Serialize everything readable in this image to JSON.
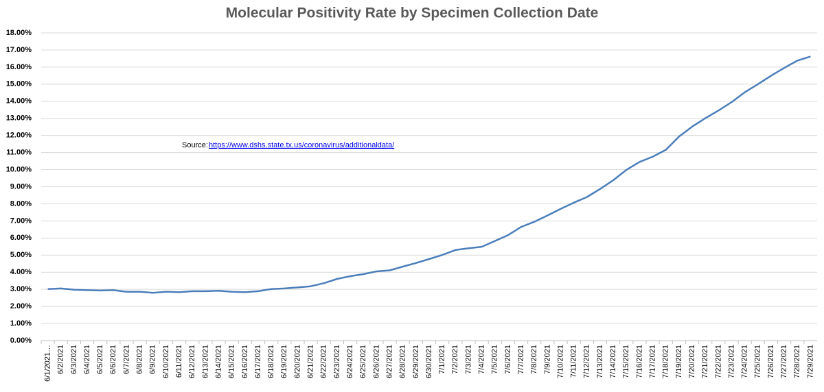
{
  "chart_data": {
    "type": "line",
    "title": "Molecular Positivity Rate by Specimen Collection Date",
    "annotation": "Source:",
    "annotation_link": "https://www.dshs.state.tx.us/coronavirus/additionaldata/",
    "categories": [
      "6/1/2021…",
      "6/2/2021",
      "6/3/2021",
      "6/4/2021",
      "6/5/2021",
      "6/6/2021",
      "6/7/2021",
      "6/8/2021",
      "6/9/2021",
      "6/10/2021",
      "6/11/2021",
      "6/12/2021",
      "6/13/2021",
      "6/14/2021",
      "6/15/2021",
      "6/16/2021",
      "6/17/2021",
      "6/18/2021",
      "6/19/2021",
      "6/20/2021",
      "6/21/2021",
      "6/22/2021",
      "6/23/2021",
      "6/24/2021",
      "6/25/2021",
      "6/26/2021",
      "6/27/2021",
      "6/28/2021",
      "6/29/2021",
      "6/30/2021",
      "7/1/2021",
      "7/2/2021",
      "7/3/2021",
      "7/4/2021",
      "7/5/2021",
      "7/6/2021",
      "7/7/2021",
      "7/8/2021",
      "7/9/2021",
      "7/10/2021",
      "7/11/2021",
      "7/12/2021",
      "7/13/2021",
      "7/14/2021",
      "7/15/2021",
      "7/16/2021",
      "7/17/2021",
      "7/18/2021",
      "7/19/2021",
      "7/20/2021",
      "7/21/2021",
      "7/22/2021",
      "7/23/2021",
      "7/24/2021",
      "7/25/2021",
      "7/26/2021",
      "7/27/2021",
      "7/28/2021",
      "7/29/2021"
    ],
    "values": [
      3.02,
      3.05,
      2.98,
      2.95,
      2.93,
      2.95,
      2.86,
      2.86,
      2.8,
      2.86,
      2.83,
      2.89,
      2.89,
      2.92,
      2.86,
      2.83,
      2.89,
      3.02,
      3.05,
      3.11,
      3.18,
      3.36,
      3.61,
      3.77,
      3.89,
      4.05,
      4.11,
      4.33,
      4.54,
      4.77,
      5.01,
      5.3,
      5.4,
      5.49,
      5.83,
      6.17,
      6.65,
      6.95,
      7.32,
      7.71,
      8.07,
      8.4,
      8.87,
      9.38,
      9.99,
      10.45,
      10.76,
      11.16,
      11.94,
      12.52,
      13.01,
      13.46,
      13.95,
      14.53,
      15.0,
      15.5,
      15.95,
      16.38,
      16.62
    ],
    "color": "#4a7ebb",
    "ylim": [
      0,
      18
    ],
    "yticks": [
      {
        "value": 0,
        "label": "0.00%"
      },
      {
        "value": 1,
        "label": "1.00%"
      },
      {
        "value": 2,
        "label": "2.00%"
      },
      {
        "value": 3,
        "label": "3.00%"
      },
      {
        "value": 4,
        "label": "4.00%"
      },
      {
        "value": 5,
        "label": "5.00%"
      },
      {
        "value": 6,
        "label": "6.00%"
      },
      {
        "value": 7,
        "label": "7.00%"
      },
      {
        "value": 8,
        "label": "8.00%"
      },
      {
        "value": 9,
        "label": "9.00%"
      },
      {
        "value": 10,
        "label": "10.00%"
      },
      {
        "value": 11,
        "label": "11.00%"
      },
      {
        "value": 12,
        "label": "12.00%"
      },
      {
        "value": 13,
        "label": "13.00%"
      },
      {
        "value": 14,
        "label": "14.00%"
      },
      {
        "value": 15,
        "label": "15.00%"
      },
      {
        "value": 16,
        "label": "16.00%"
      },
      {
        "value": 17,
        "label": "17.00%"
      },
      {
        "value": 18,
        "label": "18.00%"
      }
    ],
    "grid": true
  }
}
